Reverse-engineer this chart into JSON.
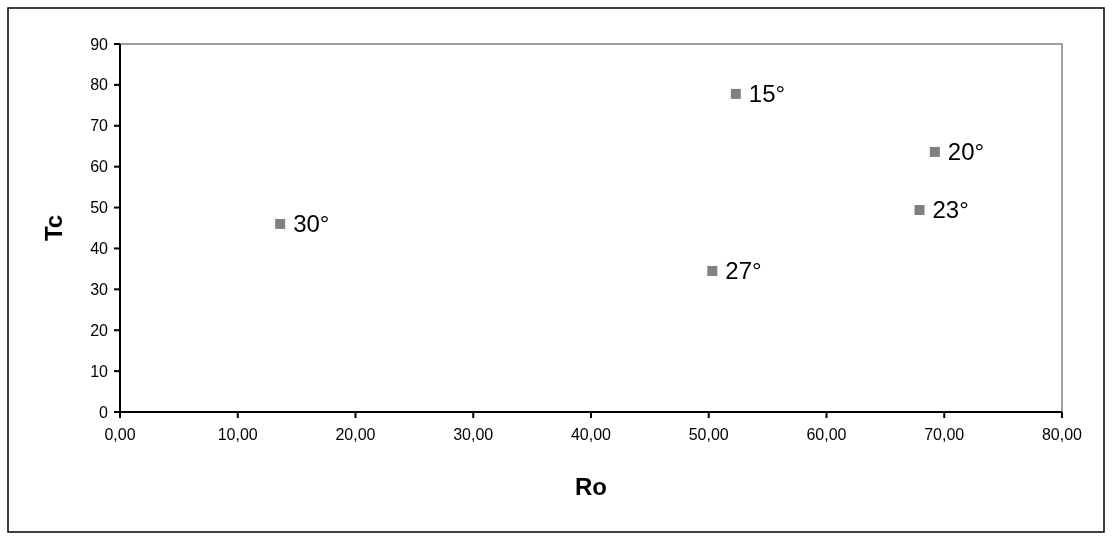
{
  "chart_data": {
    "type": "scatter",
    "xlabel": "Ro",
    "ylabel": "Tc",
    "x": [
      13.6,
      52.3,
      69.2,
      67.9,
      50.3
    ],
    "values": [
      46.0,
      77.8,
      63.6,
      49.4,
      34.5
    ],
    "annotations": [
      {
        "text": "30°",
        "x": 13.6,
        "y": 46.0
      },
      {
        "text": "15°",
        "x": 52.3,
        "y": 77.8
      },
      {
        "text": "20°",
        "x": 69.2,
        "y": 63.6
      },
      {
        "text": "23°",
        "x": 67.9,
        "y": 49.4
      },
      {
        "text": "27°",
        "x": 50.3,
        "y": 34.5
      }
    ],
    "color": "#808080",
    "marker": "square",
    "xlim": [
      0,
      80
    ],
    "xticks": [
      {
        "value": 0,
        "label": "0,00"
      },
      {
        "value": 10,
        "label": "10,00"
      },
      {
        "value": 20,
        "label": "20,00"
      },
      {
        "value": 30,
        "label": "30,00"
      },
      {
        "value": 40,
        "label": "40,00"
      },
      {
        "value": 50,
        "label": "50,00"
      },
      {
        "value": 60,
        "label": "60,00"
      },
      {
        "value": 70,
        "label": "70,00"
      },
      {
        "value": 80,
        "label": "80,00"
      }
    ],
    "ylim": [
      0,
      90
    ],
    "yticks": [
      0,
      10,
      20,
      30,
      40,
      50,
      60,
      70,
      80,
      90
    ]
  }
}
